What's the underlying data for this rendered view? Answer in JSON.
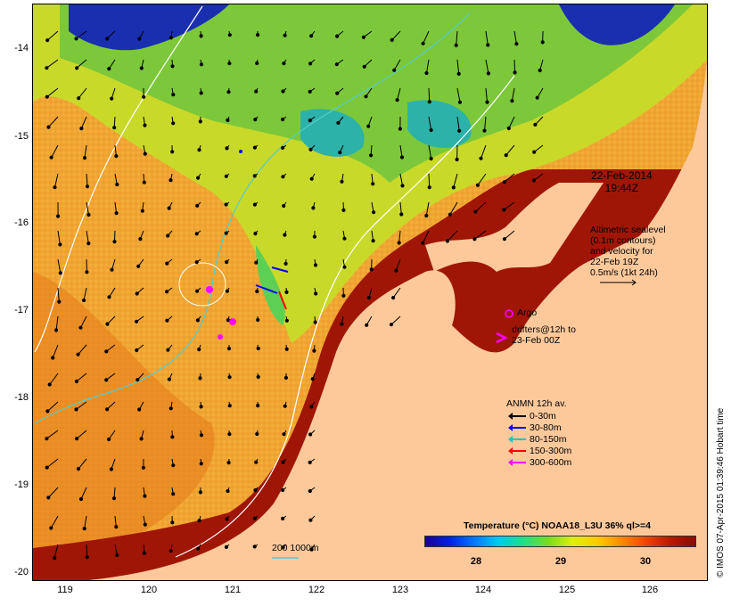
{
  "map": {
    "date_label": "22-Feb-2014",
    "time_label": "19:44Z",
    "altimetry_note": [
      "Altimetric sealevel",
      "(0.1m contours)",
      "and velocity for",
      "22-Feb 19Z",
      "0.5m/s (1kt 24h)"
    ],
    "argo_label": "Argo",
    "drifters_label": [
      "drifters@12h to",
      "23-Feb 00Z"
    ],
    "legend_title": "ANMN 12h av.",
    "legend_items": [
      {
        "label": "0-30m",
        "color": "#000000"
      },
      {
        "label": "30-80m",
        "color": "#0000ff"
      },
      {
        "label": "80-150m",
        "color": "#00c8c8"
      },
      {
        "label": "150-300m",
        "color": "#ff0000"
      },
      {
        "label": "300-600m",
        "color": "#ff00ff"
      }
    ],
    "colorbar_title": "Temperature (°C) NOAA18_L3U 36% ql>=4",
    "colorbar_ticks": [
      "28",
      "29",
      "30"
    ],
    "isobath_label": "200  1000m",
    "credit": "© IMOS 07-Apr-2015 01:39:46 Hobart time",
    "lat_ticks": [
      "-14",
      "-15",
      "-16",
      "-17",
      "-18",
      "-19",
      "-20"
    ],
    "lon_ticks": [
      "119",
      "120",
      "121",
      "122",
      "123",
      "124",
      "125",
      "126"
    ],
    "colors": {
      "land": "#fdc99b",
      "warm_sea": "#f0a533",
      "coastal_hot": "#a01606",
      "cool_patch": "#88cc33",
      "isobath_200": "#ffffff",
      "isobath_1000": "#55cccc"
    }
  }
}
